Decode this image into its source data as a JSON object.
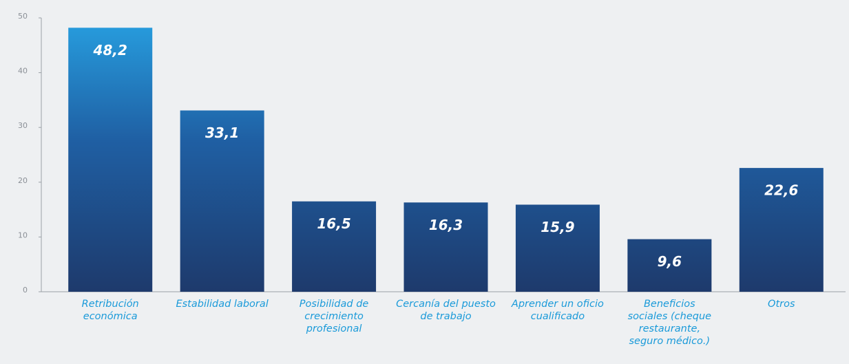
{
  "chart_data": {
    "type": "bar",
    "categories": [
      "Retribución económica",
      "Estabilidad laboral",
      "Posibilidad de crecimiento profesional",
      "Cercanía del puesto de trabajo",
      "Aprender un oficio cualificado",
      "Beneficios sociales (cheque restaurante, seguro médico.)",
      "Otros"
    ],
    "values": [
      48.2,
      33.1,
      16.5,
      16.3,
      15.9,
      9.6,
      22.6
    ],
    "value_labels": [
      "48,2",
      "33,1",
      "16,5",
      "16,3",
      "15,9",
      "9,6",
      "22,6"
    ],
    "color": "#1e3a6c",
    "ylim": [
      0,
      50
    ],
    "yticks": [
      0,
      10,
      20,
      30,
      40,
      50
    ],
    "grid": false
  }
}
